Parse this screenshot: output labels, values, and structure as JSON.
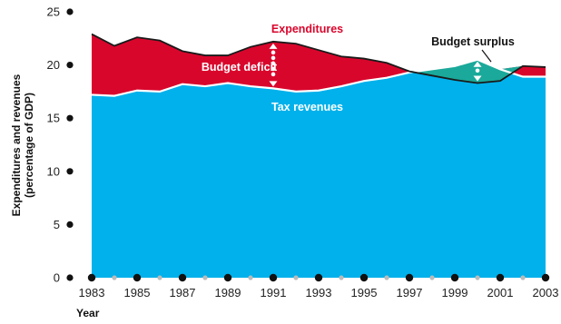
{
  "chart_data": {
    "type": "area",
    "title": "",
    "xlabel": "Year",
    "ylabel_lines": [
      "Expenditures and revenues",
      "(percentage of GDP)"
    ],
    "ylim": [
      0,
      25
    ],
    "xlim": [
      1983,
      2003
    ],
    "y_ticks": [
      "0",
      "5",
      "10",
      "15",
      "20",
      "25"
    ],
    "x_ticks": [
      "1983",
      "1985",
      "1987",
      "1989",
      "1991",
      "1993",
      "1995",
      "1997",
      "1999",
      "2001",
      "2003"
    ],
    "x": [
      1983,
      1984,
      1985,
      1986,
      1987,
      1988,
      1989,
      1990,
      1991,
      1992,
      1993,
      1994,
      1995,
      1996,
      1997,
      1998,
      1999,
      2000,
      2001,
      2002,
      2003
    ],
    "series": [
      {
        "name": "Expenditures",
        "values": [
          22.9,
          21.8,
          22.6,
          22.3,
          21.3,
          20.9,
          20.9,
          21.7,
          22.2,
          22.0,
          21.4,
          20.8,
          20.6,
          20.2,
          19.4,
          19.0,
          18.6,
          18.3,
          18.5,
          19.9,
          19.8
        ]
      },
      {
        "name": "Tax revenues",
        "values": [
          17.2,
          17.1,
          17.6,
          17.5,
          18.2,
          18.0,
          18.3,
          18.0,
          17.8,
          17.5,
          17.6,
          18.0,
          18.5,
          18.8,
          19.3,
          19.6,
          19.9,
          20.5,
          19.6,
          18.9,
          18.9
        ]
      }
    ],
    "annotations": {
      "expenditures": "Expenditures",
      "budget_deficit": "Budget deficit",
      "budget_surplus": "Budget surplus",
      "tax_revenues": "Tax revenues"
    },
    "colors": {
      "revenue_fill": "#00b1eb",
      "deficit_fill": "#d9062c",
      "surplus_fill": "#1aa99a",
      "expenditure_line": "#1a1a1a",
      "revenue_line": "#ffffff",
      "expenditures_label": "#d9062c",
      "deficit_label": "#ffffff",
      "surplus_label": "#111111",
      "tax_label": "#ffffff",
      "marker": "#111111",
      "minor_marker": "#bbbbbb"
    },
    "grid": false,
    "legend": "none"
  }
}
